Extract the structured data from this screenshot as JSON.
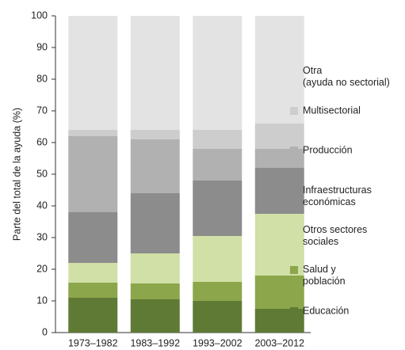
{
  "chart_data": {
    "type": "stacked_bar",
    "ylabel": "Parte del total de la ayuda (%)",
    "categories": [
      "1973–1982",
      "1983–1992",
      "1993–2002",
      "2003–2012"
    ],
    "series": [
      {
        "name": "Educación",
        "color": "#5f7a35",
        "values": [
          11,
          10.5,
          10,
          7.5
        ]
      },
      {
        "name": "Salud y\npoblación",
        "color": "#8ca64b",
        "values": [
          4.8,
          5,
          6,
          10.5
        ]
      },
      {
        "name": "Otros sectores\nsociales",
        "color": "#d0e0a6",
        "values": [
          6.2,
          9.5,
          14.5,
          19.5
        ]
      },
      {
        "name": "Infraestructuras\neconómicas",
        "color": "#8c8c8c",
        "values": [
          16,
          19,
          17.5,
          14.5
        ]
      },
      {
        "name": "Producción",
        "color": "#b1b1b1",
        "values": [
          24,
          17,
          10,
          6
        ]
      },
      {
        "name": "Multisectorial",
        "color": "#cdcdcd",
        "values": [
          2,
          3,
          6,
          8
        ]
      },
      {
        "name": "Otra\n(ayuda no sectorial)",
        "color": "#e3e3e3",
        "values": [
          36,
          36,
          36,
          34
        ]
      }
    ],
    "ylim": [
      0,
      100
    ],
    "yticks": [
      0,
      10,
      20,
      30,
      40,
      50,
      60,
      70,
      80,
      90,
      100
    ]
  }
}
